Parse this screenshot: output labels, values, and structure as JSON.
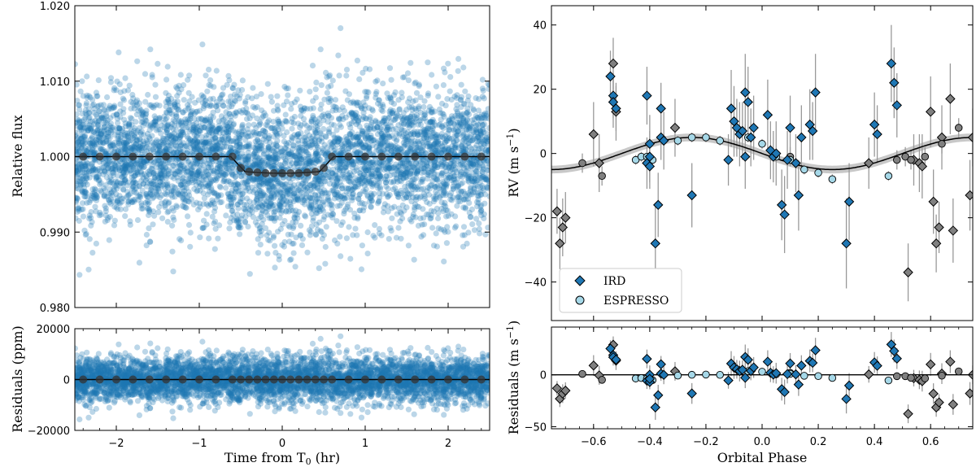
{
  "colors": {
    "tess_points": "#1f77b4",
    "binned": "#333333",
    "model": "#000000",
    "ird": "#1f77b4",
    "espresso": "#a6d8e8",
    "other_rv": "#808080",
    "errorbar": "#999999",
    "model_band": "#b0b0b0"
  },
  "chart_data": [
    {
      "id": "lc",
      "type": "scatter",
      "ylabel": "Relative flux",
      "xlim": [
        -2.5,
        2.5
      ],
      "ylim": [
        0.98,
        1.02
      ],
      "yticks": [
        0.98,
        0.99,
        1.0,
        1.01,
        1.02
      ],
      "yticklabels": [
        "0.980",
        "0.990",
        "1.000",
        "1.010",
        "1.020"
      ],
      "noise_sigma": 0.0045,
      "n_points": 5000,
      "transit": {
        "depth": 0.0022,
        "t1": -0.62,
        "t2": -0.45,
        "t3": 0.45,
        "t4": 0.62
      },
      "binned_x": [
        -2.4,
        -2.2,
        -2.0,
        -1.8,
        -1.6,
        -1.4,
        -1.2,
        -1.0,
        -0.8,
        -0.6,
        -0.5,
        -0.4,
        -0.3,
        -0.2,
        -0.1,
        0.0,
        0.1,
        0.2,
        0.3,
        0.4,
        0.5,
        0.6,
        0.8,
        1.0,
        1.2,
        1.4,
        1.6,
        1.8,
        2.0,
        2.2,
        2.4
      ],
      "binned_y": [
        1.0,
        1.0,
        1.0,
        1.0,
        1.0,
        1.0,
        1.0,
        1.0,
        1.0,
        1.0,
        0.9985,
        0.998,
        0.9979,
        0.9978,
        0.9978,
        0.9978,
        0.9978,
        0.9978,
        0.9979,
        0.998,
        0.9985,
        1.0,
        1.0,
        1.0,
        1.0,
        1.0,
        1.0,
        1.0,
        1.0,
        1.0,
        1.0
      ]
    },
    {
      "id": "lcres",
      "type": "scatter",
      "xlabel": "Time from T₀ (hr)",
      "ylabel": "Residuals (ppm)",
      "xlim": [
        -2.5,
        2.5
      ],
      "ylim": [
        -20000,
        20000
      ],
      "xticks": [
        -2,
        -1,
        0,
        1,
        2
      ],
      "xticklabels": [
        "−2",
        "−1",
        "0",
        "1",
        "2"
      ],
      "yticks": [
        -20000,
        0,
        20000
      ],
      "yticklabels": [
        "−20000",
        "0",
        "20000"
      ],
      "noise_sigma": 4500,
      "n_points": 5000
    },
    {
      "id": "rv",
      "type": "scatter",
      "ylabel": "RV (m s⁻¹)",
      "xlim": [
        -0.75,
        0.75
      ],
      "ylim": [
        -52,
        46
      ],
      "yticks": [
        -40,
        -20,
        0,
        20,
        40
      ],
      "yticklabels": [
        "−40",
        "−20",
        "0",
        "20",
        "40"
      ],
      "model": {
        "type": "sinusoid",
        "amplitude": 5.0,
        "phase_zero": 0.0,
        "period": 1.0
      },
      "legend": [
        {
          "label": "IRD",
          "marker": "diamond",
          "color": "#1f77b4"
        },
        {
          "label": "ESPRESSO",
          "marker": "circle",
          "color": "#a6d8e8"
        }
      ],
      "legend_position": "lower-left",
      "ird": {
        "x": [
          -0.54,
          -0.53,
          -0.53,
          -0.52,
          -0.41,
          -0.41,
          -0.4,
          -0.4,
          -0.4,
          -0.38,
          -0.37,
          -0.36,
          -0.36,
          -0.35,
          -0.25,
          -0.12,
          -0.11,
          -0.1,
          -0.09,
          -0.08,
          -0.07,
          -0.06,
          -0.06,
          -0.05,
          -0.04,
          -0.03,
          0.02,
          0.03,
          0.04,
          0.05,
          0.07,
          0.08,
          0.09,
          0.1,
          0.12,
          0.13,
          0.14,
          0.17,
          0.18,
          0.19,
          0.3,
          0.31,
          0.4,
          0.41,
          0.46,
          0.47,
          0.48
        ],
        "y": [
          24,
          18,
          16,
          14,
          18,
          -3,
          -4,
          3,
          -1,
          -28,
          -16,
          14,
          5,
          4,
          -13,
          -2,
          14,
          10,
          8,
          6,
          7,
          -1,
          19,
          16,
          5,
          8,
          12,
          1,
          -1,
          0,
          -16,
          -19,
          -2,
          8,
          -3,
          -13,
          5,
          9,
          7,
          19,
          -28,
          -15,
          9,
          6,
          28,
          22,
          15
        ],
        "yerr": [
          8,
          7,
          8,
          7,
          9,
          8,
          7,
          9,
          8,
          12,
          10,
          8,
          7,
          9,
          10,
          8,
          12,
          11,
          9,
          10,
          9,
          10,
          12,
          11,
          9,
          10,
          11,
          9,
          8,
          10,
          11,
          12,
          9,
          10,
          9,
          11,
          10,
          11,
          9,
          12,
          14,
          12,
          10,
          9,
          12,
          11,
          10
        ]
      },
      "espresso": {
        "x": [
          -0.45,
          -0.43,
          -0.41,
          -0.39,
          -0.3,
          -0.25,
          -0.2,
          -0.15,
          -0.05,
          0.0,
          0.05,
          0.1,
          0.15,
          0.2,
          0.25,
          0.45
        ],
        "y": [
          -2,
          -1,
          -1,
          -2,
          4,
          5,
          5,
          4,
          5,
          3,
          -1,
          -2,
          -5,
          -6,
          -8,
          -7
        ],
        "yerr": [
          1.5,
          1.5,
          1.5,
          1.5,
          1.5,
          1.5,
          1.5,
          1.5,
          1.5,
          1.5,
          1.5,
          1.5,
          1.5,
          1.5,
          1.5,
          1.5
        ]
      },
      "other_diamonds": {
        "x": [
          -0.73,
          -0.72,
          -0.71,
          -0.7,
          -0.6,
          -0.58,
          -0.53,
          -0.52,
          -0.31,
          0.38,
          0.52,
          0.54,
          0.56,
          0.57,
          0.6,
          0.61,
          0.62,
          0.63,
          0.64,
          0.67,
          0.68,
          0.74,
          0.75
        ],
        "y": [
          -18,
          -28,
          -23,
          -20,
          6,
          -3,
          28,
          13,
          8,
          -3,
          -37,
          -2,
          -3,
          -4,
          13,
          -15,
          -28,
          -23,
          5,
          17,
          -24,
          -13,
          5
        ],
        "yerr": [
          7,
          8,
          9,
          8,
          10,
          9,
          8,
          9,
          9,
          8,
          9,
          8,
          9,
          10,
          11,
          10,
          9,
          8,
          10,
          11,
          10,
          11,
          9
        ]
      },
      "other_circles": {
        "x": [
          -0.64,
          -0.57,
          0.1,
          0.48,
          0.51,
          0.53,
          0.58,
          0.64,
          0.7
        ],
        "y": [
          -3,
          -7,
          -1,
          -2,
          -1,
          -2,
          -1,
          3,
          8
        ],
        "yerr": [
          3,
          3,
          3,
          3,
          3,
          3,
          3,
          3,
          3
        ]
      }
    },
    {
      "id": "rvres",
      "type": "scatter",
      "xlabel": "Orbital Phase",
      "ylabel": "Residuals (m s⁻¹)",
      "xlim": [
        -0.75,
        0.75
      ],
      "ylim": [
        -52,
        46
      ],
      "xticks": [
        -0.6,
        -0.4,
        -0.2,
        0.0,
        0.2,
        0.4,
        0.6
      ],
      "xticklabels": [
        "−0.6",
        "−0.4",
        "−0.2",
        "0.0",
        "0.2",
        "0.4",
        "0.6"
      ],
      "yticks": [
        -50,
        0
      ],
      "yticklabels": [
        "−50",
        "0"
      ]
    }
  ]
}
